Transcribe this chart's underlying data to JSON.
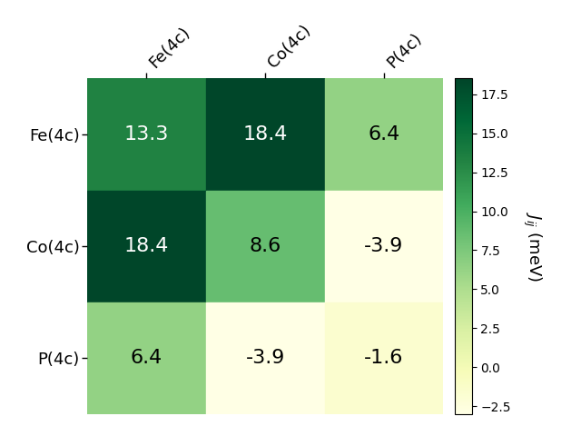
{
  "matrix": [
    [
      13.3,
      18.4,
      6.4
    ],
    [
      18.4,
      8.6,
      -3.9
    ],
    [
      6.4,
      -3.9,
      -1.6
    ]
  ],
  "labels": [
    "Fe(4c)",
    "Co(4c)",
    "P(4c)"
  ],
  "vmin": -3.0,
  "vmax": 18.5,
  "colorbar_label": "$J_{ij}$ (meV)",
  "colorbar_ticks": [
    -2.5,
    0.0,
    2.5,
    5.0,
    7.5,
    10.0,
    12.5,
    15.0,
    17.5
  ],
  "font_size_values": 16,
  "font_size_labels": 13,
  "background_color": "#ffffff",
  "figsize": [
    6.4,
    4.8
  ],
  "dpi": 100
}
